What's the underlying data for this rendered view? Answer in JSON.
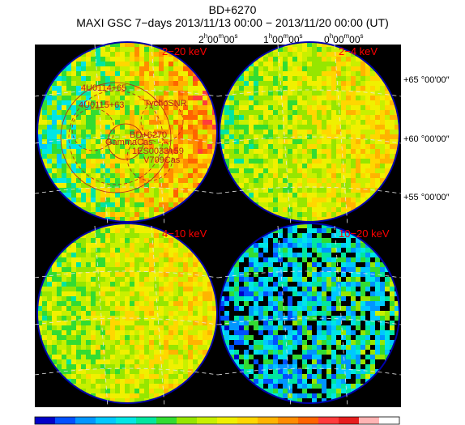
{
  "title": "BD+6270",
  "subtitle": "MAXI GSC 7−days 2013/11/13 00:00 − 2013/11/20 00:00 (UT)",
  "ra_labels": [
    {
      "h": "2",
      "m": "00",
      "s": "00"
    },
    {
      "h": "1",
      "m": "00",
      "s": "00"
    },
    {
      "h": "0",
      "m": "00",
      "s": "00"
    }
  ],
  "dec_labels": [
    "+65 °00′00″",
    "+60 °00′00″",
    "+55 °00′00″"
  ],
  "chart_data": {
    "type": "heatmap",
    "panels": [
      {
        "label": "2−20 keV",
        "level": "high"
      },
      {
        "label": "2−4 keV",
        "level": "mid"
      },
      {
        "label": "4−10 keV",
        "level": "mid"
      },
      {
        "label": "10−20 keV",
        "level": "low"
      }
    ],
    "sources": [
      "4U0114+65",
      "4U0115+63",
      "TychoSNR",
      "BD+6270",
      "GammaCas",
      "1ES0033+59",
      "V709Cas"
    ],
    "colorbar": [
      "#0000c8",
      "#0050ff",
      "#0096ff",
      "#00c8ff",
      "#00e6e6",
      "#00e6a0",
      "#32dc32",
      "#96e600",
      "#c8f000",
      "#f0f000",
      "#ffd700",
      "#ffb400",
      "#ff8c00",
      "#ff6400",
      "#ff3c3c",
      "#e61e1e",
      "#ffb4b4",
      "#ffffff"
    ],
    "colors": {
      "panel_bg": "#000000",
      "label": "#ff0000",
      "overlay": "#b41e1e"
    }
  }
}
